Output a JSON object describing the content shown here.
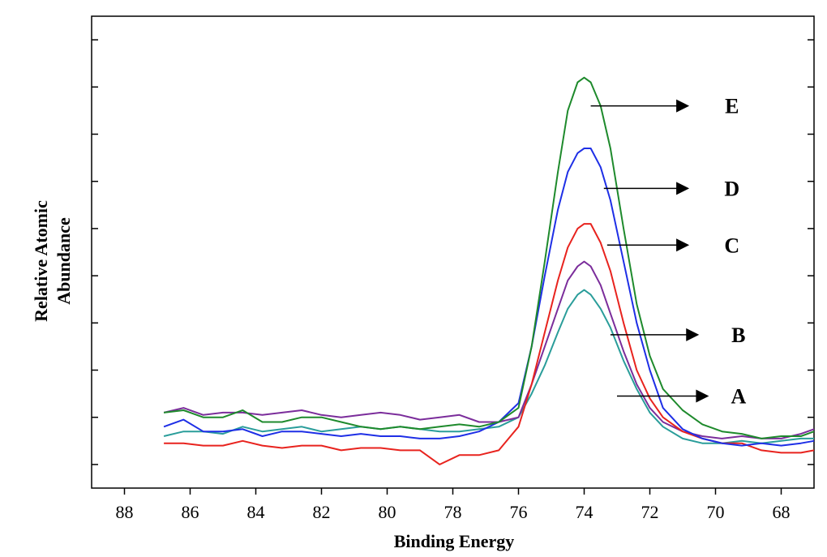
{
  "chart_data": {
    "type": "line",
    "title": "",
    "xlabel": "Binding Energy",
    "ylabel_lines": [
      "Relative Atomic",
      "Abundance"
    ],
    "x_reversed": true,
    "xlim": [
      89,
      67
    ],
    "ylim": [
      0,
      100
    ],
    "x_ticks": [
      88,
      86,
      84,
      82,
      80,
      78,
      76,
      74,
      72,
      70,
      68
    ],
    "y_tick_values": [
      5,
      15,
      25,
      35,
      45,
      55,
      65,
      75,
      85,
      95
    ],
    "y_tick_labels_shown": false,
    "grid": false,
    "legend": "none",
    "series": [
      {
        "label": "A",
        "color": "#2a9d9a",
        "x": [
          86.8,
          86.2,
          85.6,
          85,
          84.4,
          83.8,
          83.2,
          82.6,
          82,
          81.4,
          80.8,
          80.2,
          79.6,
          79,
          78.4,
          77.8,
          77.2,
          76.6,
          76,
          75.6,
          75.2,
          74.8,
          74.5,
          74.2,
          74,
          73.8,
          73.5,
          73.2,
          72.8,
          72.4,
          72,
          71.6,
          71,
          70.4,
          69.8,
          69.2,
          68.6,
          68,
          67.4,
          67
        ],
        "y": [
          11,
          12,
          12,
          11.5,
          13,
          12,
          12.5,
          13,
          12,
          12.5,
          13,
          12.5,
          13,
          12.5,
          12,
          12,
          12.5,
          13,
          15,
          20,
          26,
          33,
          38,
          41,
          42,
          41,
          38,
          34,
          27,
          21,
          16,
          13,
          10.5,
          9.5,
          9.5,
          10,
          9.5,
          10,
          10.5,
          10.5
        ]
      },
      {
        "label": "B",
        "color": "#7b2d9b",
        "x": [
          86.8,
          86.2,
          85.6,
          85,
          84.4,
          83.8,
          83.2,
          82.6,
          82,
          81.4,
          80.8,
          80.2,
          79.6,
          79,
          78.4,
          77.8,
          77.2,
          76.6,
          76,
          75.6,
          75.2,
          74.8,
          74.5,
          74.2,
          74,
          73.8,
          73.5,
          73.2,
          72.8,
          72.4,
          72,
          71.6,
          71,
          70.4,
          69.8,
          69.2,
          68.6,
          68,
          67.4,
          67
        ],
        "y": [
          16,
          17,
          15.5,
          16,
          16,
          15.5,
          16,
          16.5,
          15.5,
          15,
          15.5,
          16,
          15.5,
          14.5,
          15,
          15.5,
          14,
          14,
          15,
          22,
          30,
          38,
          44,
          47,
          48,
          47,
          43,
          37,
          29,
          22,
          17,
          14,
          12,
          11,
          10.5,
          11,
          10.5,
          10.5,
          11.5,
          12.5
        ]
      },
      {
        "label": "C",
        "color": "#e8231e",
        "x": [
          86.8,
          86.2,
          85.6,
          85,
          84.4,
          83.8,
          83.2,
          82.6,
          82,
          81.4,
          80.8,
          80.2,
          79.6,
          79,
          78.4,
          77.8,
          77.2,
          76.6,
          76,
          75.6,
          75.2,
          74.8,
          74.5,
          74.2,
          74,
          73.8,
          73.5,
          73.2,
          72.8,
          72.4,
          72,
          71.6,
          71,
          70.4,
          69.8,
          69.2,
          68.6,
          68,
          67.4,
          67
        ],
        "y": [
          9.5,
          9.5,
          9,
          9,
          10,
          9,
          8.5,
          9,
          9,
          8,
          8.5,
          8.5,
          8,
          8,
          5,
          7,
          7,
          8,
          13,
          22,
          33,
          44,
          51,
          55,
          56,
          56,
          52,
          46,
          35,
          25,
          19,
          15,
          12,
          10.5,
          9.5,
          9.5,
          8,
          7.5,
          7.5,
          8
        ]
      },
      {
        "label": "D",
        "color": "#1e2fe6",
        "x": [
          86.8,
          86.2,
          85.6,
          85,
          84.4,
          83.8,
          83.2,
          82.6,
          82,
          81.4,
          80.8,
          80.2,
          79.6,
          79,
          78.4,
          77.8,
          77.2,
          76.6,
          76,
          75.6,
          75.2,
          74.8,
          74.5,
          74.2,
          74,
          73.8,
          73.5,
          73.2,
          72.8,
          72.4,
          72,
          71.6,
          71,
          70.4,
          69.8,
          69.2,
          68.6,
          68,
          67.4,
          67
        ],
        "y": [
          13,
          14.5,
          12,
          12,
          12.5,
          11,
          12,
          12,
          11.5,
          11,
          11.5,
          11,
          11,
          10.5,
          10.5,
          11,
          12,
          14,
          18,
          30,
          45,
          59,
          67,
          71,
          72,
          72,
          68,
          61,
          48,
          35,
          25,
          17,
          12.5,
          10.5,
          9.5,
          9,
          9.5,
          9,
          9.5,
          10
        ]
      },
      {
        "label": "E",
        "color": "#1e8a2c",
        "x": [
          86.8,
          86.2,
          85.6,
          85,
          84.4,
          83.8,
          83.2,
          82.6,
          82,
          81.4,
          80.8,
          80.2,
          79.6,
          79,
          78.4,
          77.8,
          77.2,
          76.6,
          76,
          75.6,
          75.2,
          74.8,
          74.5,
          74.2,
          74,
          73.8,
          73.5,
          73.2,
          72.8,
          72.4,
          72,
          71.6,
          71,
          70.4,
          69.8,
          69.2,
          68.6,
          68,
          67.4,
          67
        ],
        "y": [
          16,
          16.5,
          15,
          15,
          16.5,
          14,
          14,
          15,
          15,
          14,
          13,
          12.5,
          13,
          12.5,
          13,
          13.5,
          13,
          14,
          17,
          30,
          48,
          67,
          80,
          86,
          87,
          86,
          81,
          72,
          55,
          39,
          28,
          21,
          16.5,
          13.5,
          12,
          11.5,
          10.5,
          11,
          11,
          12
        ]
      }
    ],
    "annotations": [
      {
        "label": "E",
        "arrow_from": [
          73.8,
          81
        ],
        "arrow_to": [
          70.8,
          81
        ],
        "text_at": [
          69.5,
          81
        ]
      },
      {
        "label": "D",
        "arrow_from": [
          73.4,
          63.5
        ],
        "arrow_to": [
          70.8,
          63.5
        ],
        "text_at": [
          69.5,
          63.5
        ]
      },
      {
        "label": "C",
        "arrow_from": [
          73.3,
          51.5
        ],
        "arrow_to": [
          70.8,
          51.5
        ],
        "text_at": [
          69.5,
          51.5
        ]
      },
      {
        "label": "B",
        "arrow_from": [
          73.2,
          32.5
        ],
        "arrow_to": [
          70.5,
          32.5
        ],
        "text_at": [
          69.3,
          32.5
        ]
      },
      {
        "label": "A",
        "arrow_from": [
          73,
          19.5
        ],
        "arrow_to": [
          70.2,
          19.5
        ],
        "text_at": [
          69.3,
          19.5
        ]
      }
    ]
  }
}
